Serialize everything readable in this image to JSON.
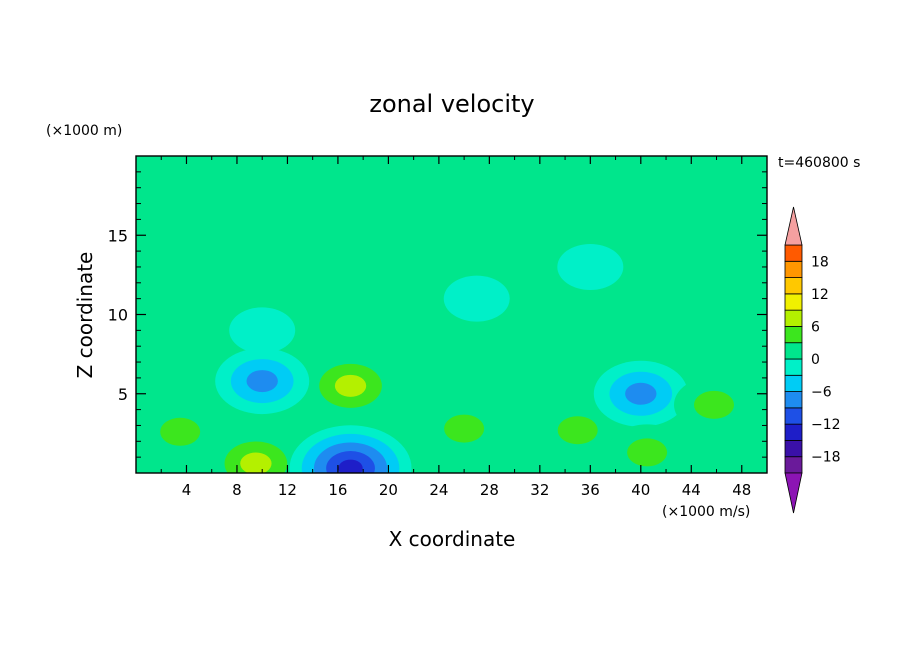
{
  "chart_data": {
    "type": "heatmap",
    "title": "zonal velocity",
    "xlabel": "X coordinate",
    "ylabel": "Z coordinate",
    "x_unit": "(×1000 m/s)",
    "y_unit": "(×1000 m)",
    "time_label": "t=460800 s",
    "xlim": [
      0,
      50
    ],
    "ylim": [
      0,
      20
    ],
    "x_ticks": [
      4,
      8,
      12,
      16,
      20,
      24,
      28,
      32,
      36,
      40,
      44,
      48
    ],
    "y_ticks": [
      5,
      10,
      15
    ],
    "colorbar": {
      "levels": [
        -21,
        -18,
        -15,
        -12,
        -9,
        -6,
        -3,
        0,
        3,
        6,
        9,
        12,
        15,
        18,
        21
      ],
      "tick_labels": [
        18,
        12,
        6,
        0,
        -6,
        -12,
        -18
      ],
      "colors": [
        "#6a1a9a",
        "#3a10a8",
        "#1e1ec8",
        "#1e50e6",
        "#1e8cf0",
        "#00ccf5",
        "#00f0c8",
        "#00e68c",
        "#3ce61e",
        "#b4f000",
        "#f0f000",
        "#ffc800",
        "#ff9600",
        "#ff5a00",
        "#f01e1e",
        "#f5a0a0"
      ],
      "extend_low": "#8c14b4",
      "extend_high": "#f5a0a0"
    },
    "background_level": 0,
    "features": [
      {
        "x": 9.5,
        "z": 0.6,
        "value": 8
      },
      {
        "x": 17.0,
        "z": 5.5,
        "value": 7
      },
      {
        "x": 17.0,
        "z": 0.3,
        "value": -15
      },
      {
        "x": 10.0,
        "z": 5.8,
        "value": -9
      },
      {
        "x": 26.0,
        "z": 2.8,
        "value": 5
      },
      {
        "x": 35.0,
        "z": 2.7,
        "value": 5
      },
      {
        "x": 40.0,
        "z": 5.0,
        "value": -8
      },
      {
        "x": 3.5,
        "z": 2.6,
        "value": 4
      },
      {
        "x": 45.8,
        "z": 4.3,
        "value": 4
      },
      {
        "x": 40.5,
        "z": 1.3,
        "value": 4
      },
      {
        "x": 23.0,
        "z": 7.2,
        "value": 2
      },
      {
        "x": 27.0,
        "z": 11.0,
        "value": -2
      },
      {
        "x": 10.0,
        "z": 9.0,
        "value": -2
      },
      {
        "x": 36.0,
        "z": 13.0,
        "value": -2
      }
    ]
  }
}
